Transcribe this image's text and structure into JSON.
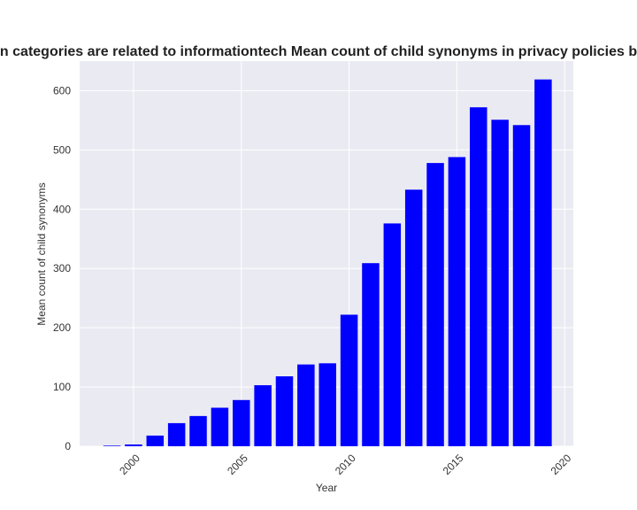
{
  "chart_data": {
    "type": "bar",
    "title": "n categories are related to informationtech Mean count of child synonyms in privacy policies b",
    "xlabel": "Year",
    "ylabel": "Mean count of child synonyms",
    "x": [
      1999,
      2000,
      2001,
      2002,
      2003,
      2004,
      2005,
      2006,
      2007,
      2008,
      2009,
      2010,
      2011,
      2012,
      2013,
      2014,
      2015,
      2016,
      2017,
      2018,
      2019
    ],
    "values": [
      1,
      3,
      18,
      39,
      51,
      65,
      78,
      103,
      118,
      138,
      140,
      222,
      309,
      376,
      433,
      478,
      488,
      572,
      551,
      542,
      619
    ],
    "xlim": [
      1997.5,
      2020.4
    ],
    "ylim": [
      0,
      650
    ],
    "xticks": [
      "2000",
      "2005",
      "2010",
      "2015",
      "2020"
    ],
    "yticks": [
      "0",
      "100",
      "200",
      "300",
      "400",
      "500",
      "600"
    ],
    "bar_color": "#0000ff",
    "background_color": "#eaeaf2",
    "grid": true
  }
}
